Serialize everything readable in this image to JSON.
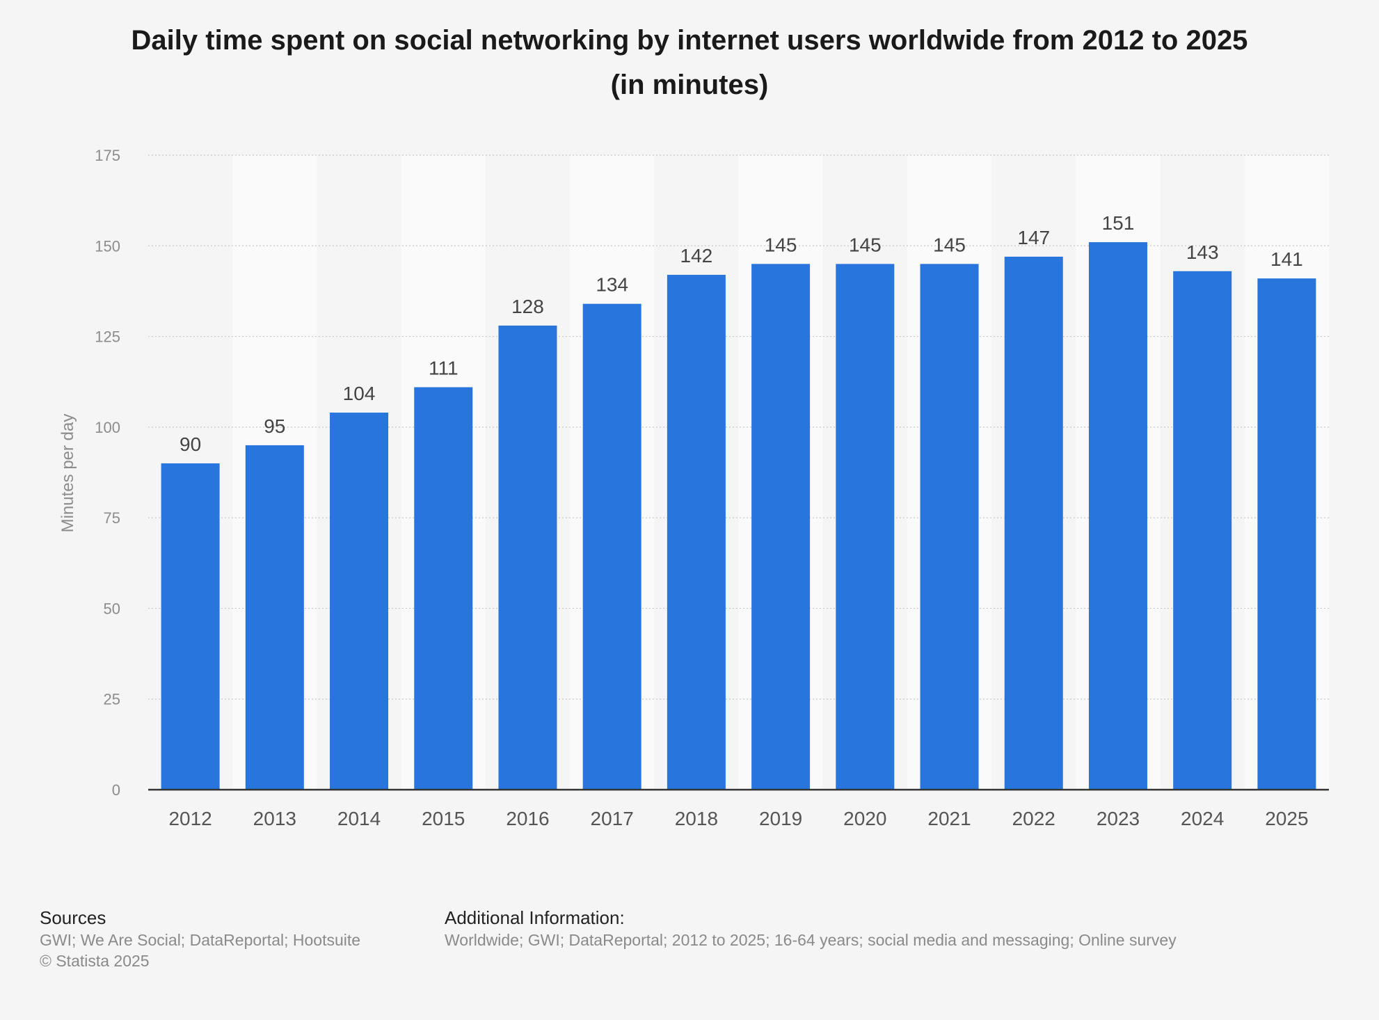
{
  "chart_data": {
    "type": "bar",
    "title_line1": "Daily time spent on social networking by internet users worldwide from 2012 to 2025",
    "title_line2": "(in minutes)",
    "ylabel": "Minutes per day",
    "xlabel": "",
    "ylim": [
      0,
      175
    ],
    "yticks": [
      0,
      25,
      50,
      75,
      100,
      125,
      150,
      175
    ],
    "categories": [
      "2012",
      "2013",
      "2014",
      "2015",
      "2016",
      "2017",
      "2018",
      "2019",
      "2020",
      "2021",
      "2022",
      "2023",
      "2024",
      "2025"
    ],
    "values": [
      90,
      95,
      104,
      111,
      128,
      134,
      142,
      145,
      145,
      145,
      147,
      151,
      143,
      141
    ],
    "grid": true,
    "legend": false,
    "bar_color": "#2876dd",
    "stripe_color": "#fafafa"
  },
  "footer": {
    "sources_heading": "Sources",
    "sources_text": "GWI; We Are Social; DataReportal; Hootsuite",
    "copyright": "© Statista 2025",
    "additional_heading": "Additional Information:",
    "additional_text": "Worldwide; GWI; DataReportal; 2012 to 2025; 16-64 years; social media and messaging; Online survey"
  }
}
